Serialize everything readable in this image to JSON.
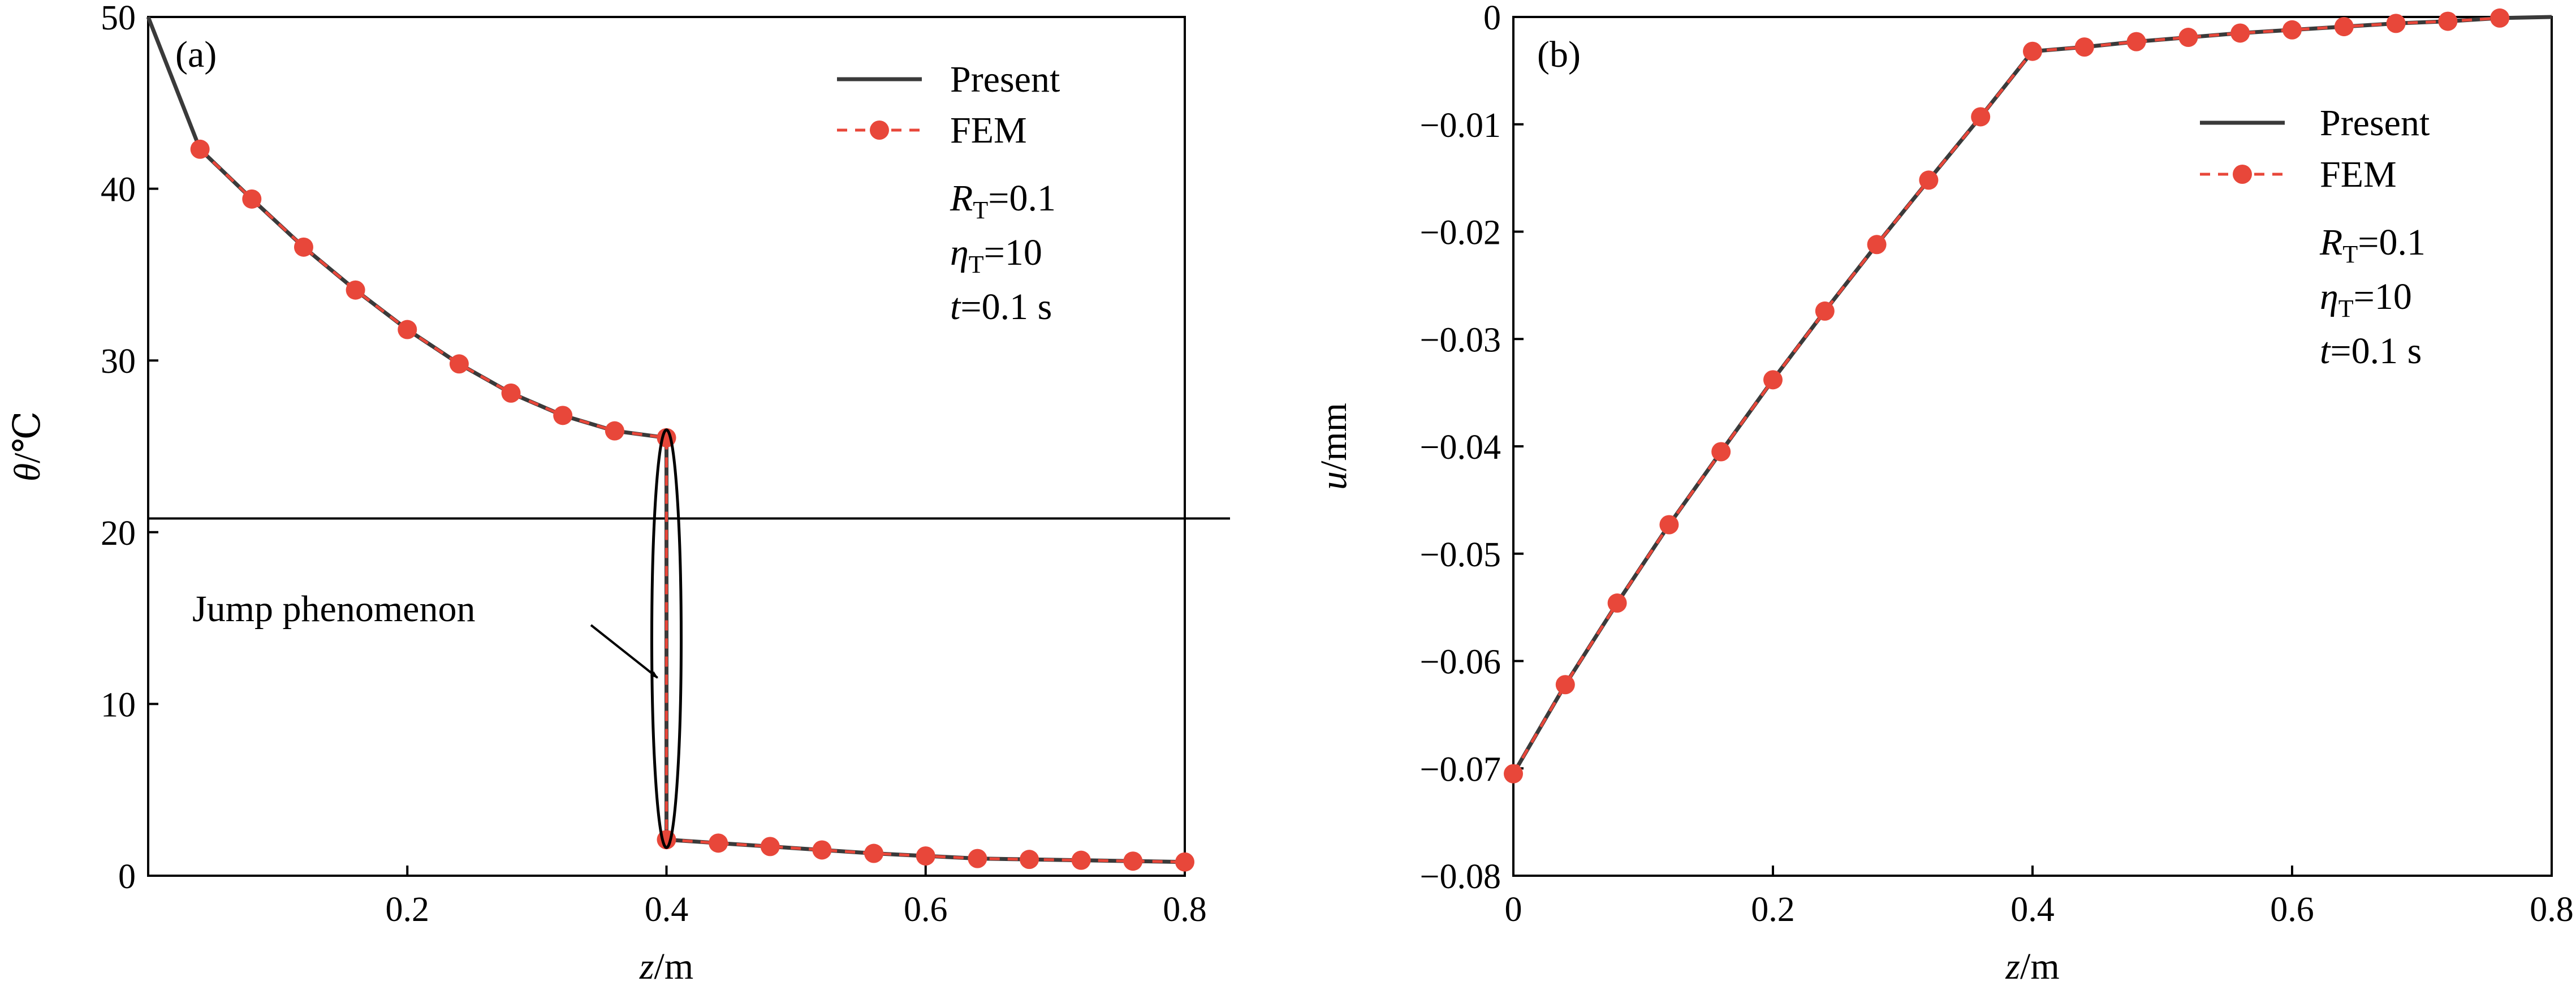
{
  "chart_data": [
    {
      "id": "a",
      "type": "line",
      "panel_label": "(a)",
      "xlabel": {
        "italic": "z",
        "rest": "/m"
      },
      "ylabel": {
        "italic": "θ",
        "rest": "/℃"
      },
      "xlim": [
        0,
        0.8
      ],
      "ylim": [
        0,
        50
      ],
      "xticks": [
        0.2,
        0.4,
        0.6,
        0.8
      ],
      "xtick_labels": [
        "0.2",
        "0.4",
        "0.6",
        "0.8"
      ],
      "yticks": [
        0,
        10,
        20,
        30,
        40,
        50
      ],
      "ytick_labels": [
        "0",
        "10",
        "20",
        "30",
        "40",
        "50"
      ],
      "legend": {
        "position": "top-right",
        "entries": [
          "Present",
          "FEM"
        ]
      },
      "params": [
        {
          "sym": "R",
          "sub": "T",
          "rest": "=0.1"
        },
        {
          "sym": "η",
          "sub": "T",
          "rest": "=10"
        },
        {
          "sym": "t",
          "sub": "",
          "rest": "=0.1 s"
        }
      ],
      "annotation": {
        "text": "Jump phenomenon",
        "ellipse_x": 0.4,
        "ellipse_y_range": [
          2.1,
          25.5
        ]
      },
      "reference_line_y": 20.8,
      "series": [
        {
          "name": "Present",
          "style": "solid",
          "color": "#3a3a3a",
          "x": [
            0,
            0.04,
            0.08,
            0.12,
            0.16,
            0.2,
            0.24,
            0.28,
            0.32,
            0.36,
            0.4,
            0.4,
            0.44,
            0.48,
            0.52,
            0.56,
            0.6,
            0.64,
            0.68,
            0.72,
            0.76,
            0.8
          ],
          "y": [
            50,
            42.3,
            39.4,
            36.6,
            34.1,
            31.8,
            29.8,
            28.1,
            26.8,
            25.9,
            25.5,
            2.1,
            1.9,
            1.7,
            1.5,
            1.3,
            1.15,
            1.0,
            0.95,
            0.9,
            0.85,
            0.8
          ]
        },
        {
          "name": "FEM",
          "style": "dashed-markers",
          "color": "#e8473a",
          "x": [
            0.04,
            0.08,
            0.12,
            0.16,
            0.2,
            0.24,
            0.28,
            0.32,
            0.36,
            0.4,
            0.4,
            0.44,
            0.48,
            0.52,
            0.56,
            0.6,
            0.64,
            0.68,
            0.72,
            0.76,
            0.8
          ],
          "y": [
            42.3,
            39.4,
            36.6,
            34.1,
            31.8,
            29.8,
            28.1,
            26.8,
            25.9,
            25.5,
            2.1,
            1.9,
            1.7,
            1.5,
            1.3,
            1.15,
            1.0,
            0.95,
            0.9,
            0.85,
            0.8
          ]
        }
      ]
    },
    {
      "id": "b",
      "type": "line",
      "panel_label": "(b)",
      "xlabel": {
        "italic": "z",
        "rest": "/m"
      },
      "ylabel": {
        "italic": "u",
        "rest": "/mm"
      },
      "xlim": [
        0,
        0.8
      ],
      "ylim": [
        -0.08,
        0
      ],
      "xticks": [
        0,
        0.2,
        0.4,
        0.6,
        0.8
      ],
      "xtick_labels": [
        "0",
        "0.2",
        "0.4",
        "0.6",
        "0.8"
      ],
      "yticks": [
        0,
        -0.01,
        -0.02,
        -0.03,
        -0.04,
        -0.05,
        -0.06,
        -0.07,
        -0.08
      ],
      "ytick_labels": [
        "0",
        "−0.01",
        "−0.02",
        "−0.03",
        "−0.04",
        "−0.05",
        "−0.06",
        "−0.07",
        "−0.08"
      ],
      "legend": {
        "position": "top-right",
        "entries": [
          "Present",
          "FEM"
        ]
      },
      "params": [
        {
          "sym": "R",
          "sub": "T",
          "rest": "=0.1"
        },
        {
          "sym": "η",
          "sub": "T",
          "rest": "=10"
        },
        {
          "sym": "t",
          "sub": "",
          "rest": "=0.1 s"
        }
      ],
      "series": [
        {
          "name": "Present",
          "style": "solid",
          "color": "#3a3a3a",
          "x": [
            0,
            0.04,
            0.08,
            0.12,
            0.16,
            0.2,
            0.24,
            0.28,
            0.32,
            0.36,
            0.4,
            0.44,
            0.48,
            0.52,
            0.56,
            0.6,
            0.64,
            0.68,
            0.72,
            0.76,
            0.8
          ],
          "y": [
            -0.0705,
            -0.0622,
            -0.0546,
            -0.0473,
            -0.0405,
            -0.0338,
            -0.0274,
            -0.0212,
            -0.0152,
            -0.0093,
            -0.0032,
            -0.0028,
            -0.0023,
            -0.0019,
            -0.0015,
            -0.0012,
            -0.0009,
            -0.0006,
            -0.0004,
            -0.0001,
            0.0
          ]
        },
        {
          "name": "FEM",
          "style": "dashed-markers",
          "color": "#e8473a",
          "x": [
            0,
            0.04,
            0.08,
            0.12,
            0.16,
            0.2,
            0.24,
            0.28,
            0.32,
            0.36,
            0.4,
            0.44,
            0.48,
            0.52,
            0.56,
            0.6,
            0.64,
            0.68,
            0.72,
            0.76
          ],
          "y": [
            -0.0705,
            -0.0622,
            -0.0546,
            -0.0473,
            -0.0405,
            -0.0338,
            -0.0274,
            -0.0212,
            -0.0152,
            -0.0093,
            -0.0032,
            -0.0028,
            -0.0023,
            -0.0019,
            -0.0015,
            -0.0012,
            -0.0009,
            -0.0006,
            -0.0004,
            -0.0001
          ]
        }
      ]
    }
  ]
}
